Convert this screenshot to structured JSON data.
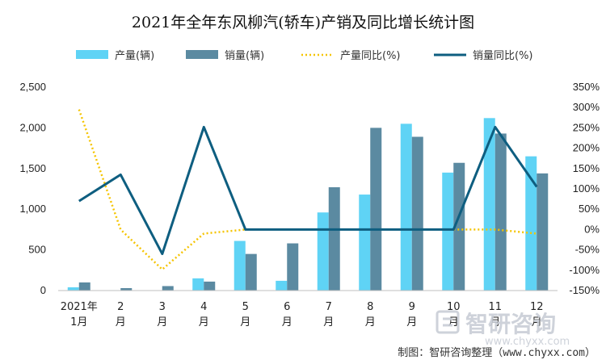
{
  "chart_data": {
    "type": "bar",
    "title": "2021年全年东风柳汽(轿车)产销及同比增长统计图",
    "categories": [
      "2021年1月",
      "2月",
      "3月",
      "4月",
      "5月",
      "6月",
      "7月",
      "8月",
      "9月",
      "10月",
      "11月",
      "12月"
    ],
    "category_lines": [
      [
        "2021年",
        "1月"
      ],
      [
        "2",
        "月"
      ],
      [
        "3",
        "月"
      ],
      [
        "4",
        "月"
      ],
      [
        "5",
        "月"
      ],
      [
        "6",
        "月"
      ],
      [
        "7",
        "月"
      ],
      [
        "8",
        "月"
      ],
      [
        "9",
        "月"
      ],
      [
        "10",
        "月"
      ],
      [
        "11",
        "月"
      ],
      [
        "12",
        "月"
      ]
    ],
    "series": [
      {
        "name": "产量(辆)",
        "kind": "bar",
        "axis": "left",
        "color": "#5fd3f5",
        "values": [
          40,
          5,
          2,
          150,
          610,
          120,
          960,
          1180,
          2050,
          1450,
          2120,
          1650
        ]
      },
      {
        "name": "销量(辆)",
        "kind": "bar",
        "axis": "left",
        "color": "#5b8aa1",
        "values": [
          100,
          30,
          55,
          110,
          450,
          580,
          1270,
          2000,
          1890,
          1570,
          1930,
          1440
        ]
      },
      {
        "name": "产量同比(%)",
        "kind": "line",
        "style": "dotted",
        "axis": "right",
        "color": "#f5c400",
        "values": [
          295,
          0,
          -98,
          -10,
          0,
          null,
          null,
          null,
          null,
          0,
          0,
          -10
        ]
      },
      {
        "name": "销量同比(%)",
        "kind": "line",
        "style": "solid",
        "axis": "right",
        "color": "#0e5e80",
        "values": [
          70,
          135,
          -60,
          252,
          0,
          0,
          0,
          0,
          0,
          0,
          252,
          105
        ]
      }
    ],
    "y_left": {
      "min": 0,
      "max": 2500,
      "step": 500,
      "tick_labels": [
        "0",
        "500",
        "1,000",
        "1,500",
        "2,000",
        "2,500"
      ]
    },
    "y_right": {
      "min": -150,
      "max": 350,
      "step": 50,
      "tick_labels": [
        "-150%",
        "-100%",
        "-50%",
        "0%",
        "50%",
        "100%",
        "150%",
        "200%",
        "250%",
        "300%",
        "350%"
      ]
    },
    "legend_position": "top",
    "grid": false
  },
  "source_text": "制图：智研咨询整理（www.chyxx.com）",
  "watermark": {
    "text": "智研咨询",
    "url": "www.chyxx.com"
  }
}
